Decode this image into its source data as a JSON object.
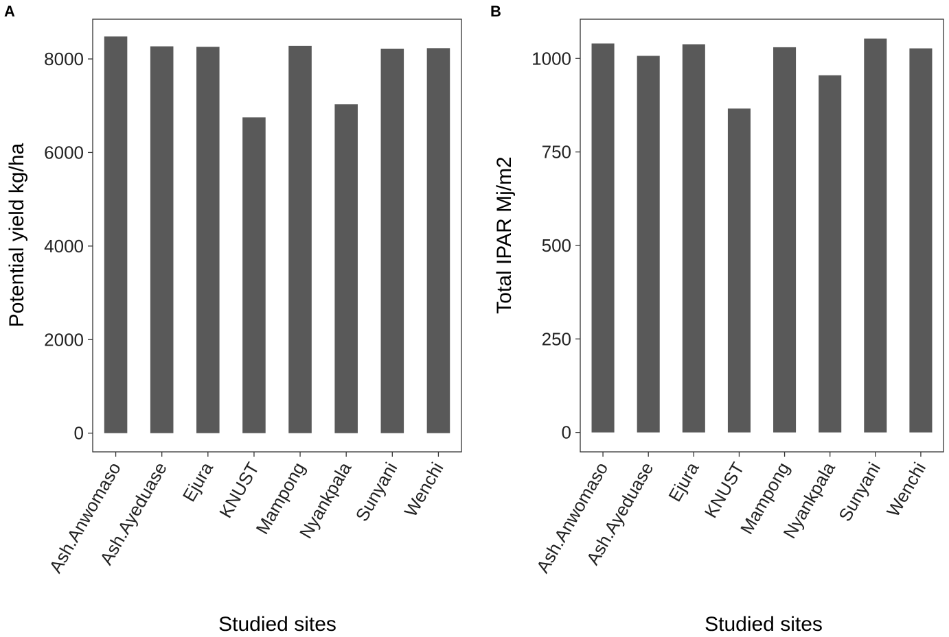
{
  "chart_data": [
    {
      "panel": "A",
      "type": "bar",
      "categories": [
        "Ash.Anwomaso",
        "Ash.Ayeduase",
        "Ejura",
        "KNUST",
        "Mampong",
        "Nyankpala",
        "Sunyani",
        "Wenchi"
      ],
      "values": [
        8480,
        8270,
        8260,
        6750,
        8280,
        7030,
        8220,
        8230
      ],
      "xlabel": "Studied sites",
      "ylabel": "Potential yield kg/ha",
      "ylim": [
        -400,
        8850
      ],
      "yticks": [
        0,
        2000,
        4000,
        6000,
        8000
      ],
      "bar_color": "#595959"
    },
    {
      "panel": "B",
      "type": "bar",
      "categories": [
        "Ash.Anwomaso",
        "Ash.Ayeduase",
        "Ejura",
        "KNUST",
        "Mampong",
        "Nyankpala",
        "Sunyani",
        "Wenchi"
      ],
      "values": [
        1040,
        1007,
        1038,
        866,
        1030,
        955,
        1053,
        1027
      ],
      "xlabel": "Studied sites",
      "ylabel": "Total IPAR Mj/m2",
      "ylim": [
        -52,
        1105
      ],
      "yticks": [
        0,
        250,
        500,
        750,
        1000
      ],
      "bar_color": "#595959"
    }
  ]
}
